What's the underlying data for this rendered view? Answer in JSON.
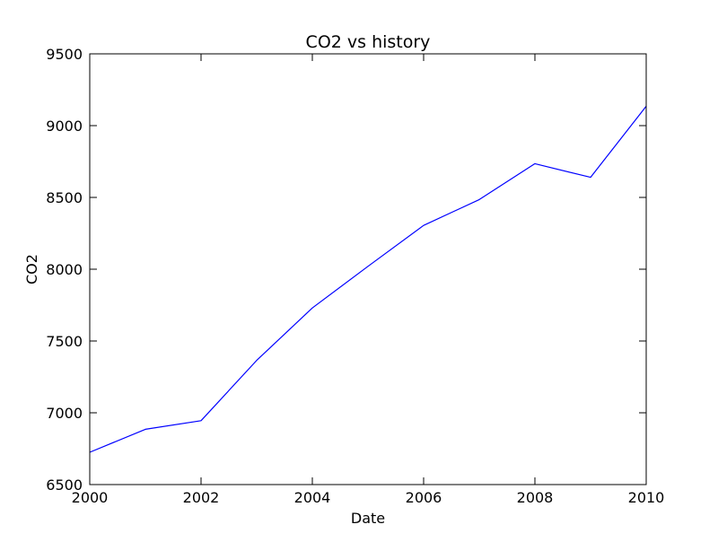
{
  "chart_data": {
    "type": "line",
    "title": "CO2 vs history",
    "xlabel": "Date",
    "ylabel": "CO2",
    "xlim": [
      2000,
      2010
    ],
    "ylim": [
      6500,
      9500
    ],
    "xticks": [
      2000,
      2002,
      2004,
      2006,
      2008,
      2010
    ],
    "yticks": [
      6500,
      7000,
      7500,
      8000,
      8500,
      9000,
      9500
    ],
    "grid": false,
    "legend": "none",
    "line_color": "#0000ff",
    "series": [
      {
        "x": [
          2000,
          2001,
          2002,
          2003,
          2004,
          2005,
          2006,
          2007,
          2008,
          2009,
          2010
        ],
        "values": [
          6725,
          6885,
          6945,
          7365,
          7730,
          8020,
          8305,
          8485,
          8735,
          8640,
          9135
        ]
      }
    ]
  }
}
